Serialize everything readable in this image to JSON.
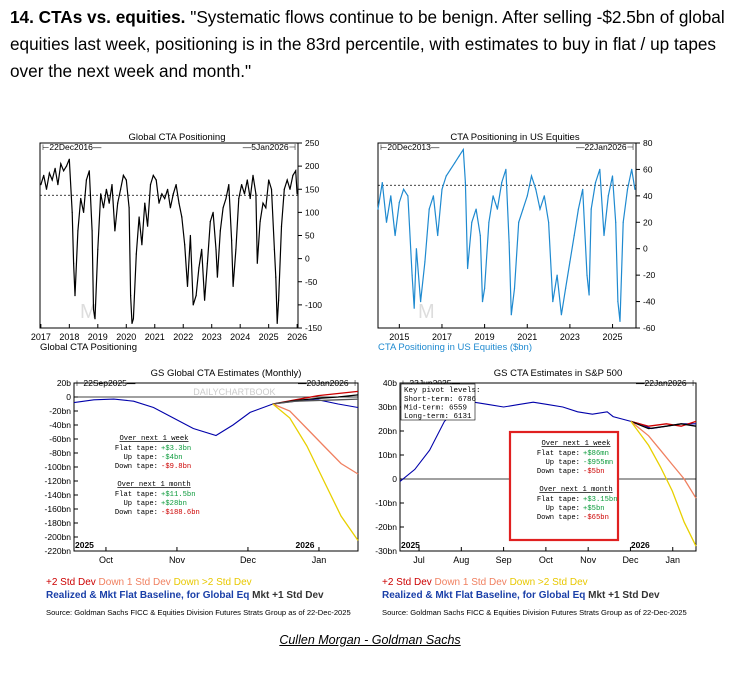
{
  "headline": {
    "prefix": "14. CTAs vs. equities.",
    "quote": " \"Systematic flows continue to be benign. After selling -$2.5bn of global equities last week, positioning is in the 83rd percentile, with estimates to buy in flat / up tapes over the next week and month.\""
  },
  "chart_data": [
    {
      "id": "global-cta-positioning",
      "type": "line",
      "title": "Global CTA Positioning",
      "caption": "Global CTA Positioning",
      "range_start": "22Dec2016",
      "range_end": "5Jan2026",
      "ylim": [
        -150,
        250
      ],
      "yticks": [
        -150,
        -100,
        -50,
        0,
        50,
        100,
        150,
        200,
        250
      ],
      "xlim": [
        2016.97,
        2026.03
      ],
      "xticks": [
        2017,
        2018,
        2019,
        2020,
        2021,
        2022,
        2023,
        2024,
        2025,
        2026
      ],
      "reference_line": 137,
      "color": "#000000",
      "x": [
        2017.0,
        2017.1,
        2017.2,
        2017.3,
        2017.4,
        2017.5,
        2017.6,
        2017.7,
        2017.8,
        2017.9,
        2018.0,
        2018.1,
        2018.15,
        2018.2,
        2018.3,
        2018.4,
        2018.5,
        2018.6,
        2018.7,
        2018.8,
        2018.85,
        2018.9,
        2019.0,
        2019.1,
        2019.2,
        2019.3,
        2019.4,
        2019.5,
        2019.6,
        2019.7,
        2019.8,
        2019.9,
        2020.0,
        2020.1,
        2020.15,
        2020.2,
        2020.25,
        2020.35,
        2020.45,
        2020.55,
        2020.65,
        2020.75,
        2020.85,
        2020.95,
        2021.05,
        2021.15,
        2021.25,
        2021.35,
        2021.45,
        2021.55,
        2021.65,
        2021.75,
        2021.85,
        2021.95,
        2022.05,
        2022.15,
        2022.25,
        2022.35,
        2022.45,
        2022.55,
        2022.65,
        2022.75,
        2022.85,
        2022.95,
        2023.05,
        2023.15,
        2023.2,
        2023.3,
        2023.4,
        2023.5,
        2023.6,
        2023.7,
        2023.75,
        2023.85,
        2023.95,
        2024.05,
        2024.15,
        2024.25,
        2024.35,
        2024.45,
        2024.55,
        2024.6,
        2024.7,
        2024.8,
        2024.9,
        2025.0,
        2025.1,
        2025.2,
        2025.25,
        2025.3,
        2025.35,
        2025.45,
        2025.55,
        2025.65,
        2025.75,
        2025.85,
        2025.95,
        2026.0
      ],
      "values": [
        160,
        180,
        150,
        185,
        170,
        195,
        160,
        205,
        190,
        200,
        215,
        100,
        -10,
        -80,
        60,
        130,
        100,
        170,
        190,
        60,
        -110,
        -130,
        20,
        140,
        110,
        150,
        120,
        160,
        60,
        120,
        150,
        180,
        170,
        110,
        -80,
        -140,
        -130,
        10,
        90,
        30,
        120,
        70,
        160,
        180,
        170,
        120,
        140,
        130,
        150,
        110,
        140,
        160,
        120,
        90,
        30,
        -60,
        50,
        -100,
        -80,
        -20,
        20,
        -90,
        -10,
        80,
        100,
        20,
        -40,
        60,
        110,
        130,
        160,
        40,
        -60,
        20,
        130,
        160,
        140,
        170,
        130,
        180,
        140,
        -10,
        80,
        120,
        110,
        170,
        150,
        20,
        -40,
        -140,
        -90,
        70,
        150,
        170,
        150,
        180,
        190,
        140
      ]
    },
    {
      "id": "cta-positioning-us-equities",
      "type": "line",
      "title": "CTA Positioning in US Equities",
      "caption": "CTA Positioning in US Equities ($bn)",
      "range_start": "20Dec2013",
      "range_end": "22Jan2026",
      "ylim": [
        -60,
        80
      ],
      "yticks": [
        -60,
        -40,
        -20,
        0,
        20,
        40,
        60,
        80
      ],
      "xlim": [
        2014.0,
        2026.1
      ],
      "xticks": [
        2015,
        2017,
        2019,
        2021,
        2023,
        2025
      ],
      "reference_line": 48,
      "color": "#1f8ad0",
      "x": [
        2014.0,
        2014.2,
        2014.4,
        2014.6,
        2014.8,
        2015.0,
        2015.2,
        2015.4,
        2015.6,
        2015.7,
        2015.8,
        2016.0,
        2016.2,
        2016.4,
        2016.6,
        2016.8,
        2017.0,
        2017.2,
        2017.4,
        2017.6,
        2017.8,
        2018.0,
        2018.1,
        2018.2,
        2018.4,
        2018.6,
        2018.8,
        2018.9,
        2019.0,
        2019.2,
        2019.4,
        2019.6,
        2019.8,
        2020.0,
        2020.15,
        2020.25,
        2020.4,
        2020.6,
        2020.8,
        2021.0,
        2021.2,
        2021.4,
        2021.6,
        2021.8,
        2022.0,
        2022.2,
        2022.4,
        2022.6,
        2022.8,
        2023.0,
        2023.2,
        2023.4,
        2023.6,
        2023.8,
        2023.9,
        2024.0,
        2024.2,
        2024.4,
        2024.6,
        2024.8,
        2025.0,
        2025.15,
        2025.25,
        2025.35,
        2025.5,
        2025.7,
        2025.9,
        2026.05
      ],
      "values": [
        30,
        50,
        20,
        40,
        10,
        35,
        45,
        40,
        -20,
        -45,
        0,
        -40,
        -10,
        30,
        40,
        10,
        45,
        55,
        60,
        65,
        70,
        75,
        50,
        -15,
        20,
        30,
        10,
        -40,
        -30,
        20,
        40,
        30,
        50,
        60,
        5,
        -50,
        -30,
        20,
        30,
        40,
        55,
        45,
        30,
        40,
        20,
        -40,
        -20,
        -50,
        -30,
        -10,
        10,
        30,
        45,
        -20,
        -35,
        30,
        50,
        60,
        10,
        40,
        55,
        20,
        -40,
        -55,
        20,
        45,
        60,
        45
      ]
    },
    {
      "id": "gs-global-cta-estimates",
      "type": "line",
      "title": "GS Global CTA Estimates (Monthly)",
      "range_start": "22Sep2025",
      "range_end": "20Jan2026",
      "ylim": [
        -220,
        20
      ],
      "yticks": [
        20,
        0,
        -20,
        -40,
        -60,
        -80,
        -100,
        -120,
        -140,
        -160,
        -180,
        -200,
        -220
      ],
      "ytick_labels": [
        "20b",
        "0",
        "-20bn",
        "-40bn",
        "-60bn",
        "-80bn",
        "-100bn",
        "-120bn",
        "-140bn",
        "-160bn",
        "-180bn",
        "-200bn",
        "-220bn"
      ],
      "x_labels": [
        "Oct",
        "Nov",
        "Dec",
        "Jan"
      ],
      "year_labels": [
        "2025",
        "2026"
      ],
      "zero_line": 0,
      "series": [
        {
          "name": "Realized & Mkt Flat Baseline",
          "color": "#0000aa",
          "x": [
            0,
            0.07,
            0.14,
            0.21,
            0.28,
            0.35,
            0.42,
            0.5,
            0.56,
            0.62,
            0.7,
            0.78,
            0.86,
            0.93,
            1.0
          ],
          "values": [
            -8,
            -4,
            -3,
            -6,
            -15,
            -30,
            -45,
            -55,
            -40,
            -22,
            -10,
            -6,
            -4,
            -10,
            -15
          ]
        },
        {
          "name": "+2 Std Dev",
          "color": "#cc0000",
          "x": [
            0.7,
            0.78,
            0.86,
            0.93,
            1.0
          ],
          "values": [
            -10,
            -4,
            2,
            5,
            8
          ]
        },
        {
          "name": "+1 Std Dev",
          "color": "#000000",
          "x": [
            0.7,
            0.78,
            0.86,
            0.93,
            1.0
          ],
          "values": [
            -10,
            -5,
            -2,
            0,
            3
          ]
        },
        {
          "name": "Mkt +1 Std Dev",
          "color": "#555555",
          "x": [
            0.7,
            0.78,
            0.86,
            0.93,
            1.0
          ],
          "values": [
            -10,
            -6,
            -5,
            -4,
            -3
          ]
        },
        {
          "name": "Down 1 Std Dev",
          "color": "#f08060",
          "x": [
            0.7,
            0.76,
            0.82,
            0.88,
            0.94,
            1.0
          ],
          "values": [
            -10,
            -20,
            -45,
            -70,
            -95,
            -110
          ]
        },
        {
          "name": "Down >2 Std Dev",
          "color": "#e8d000",
          "x": [
            0.7,
            0.76,
            0.82,
            0.88,
            0.94,
            1.0
          ],
          "values": [
            -10,
            -30,
            -70,
            -120,
            -170,
            -205
          ]
        }
      ],
      "annotations": {
        "week_header": "Over next 1 week",
        "week_rows": [
          {
            "label": "Flat tape:",
            "value": "+$3.3bn",
            "color": "#0a9a3a"
          },
          {
            "label": "Up tape:",
            "value": "-$4bn",
            "color": "#0a9a3a"
          },
          {
            "label": "Down tape:",
            "value": "-$9.8bn",
            "color": "#cc0000"
          }
        ],
        "month_header": "Over next 1 month",
        "month_rows": [
          {
            "label": "Flat tape:",
            "value": "+$11.5bn",
            "color": "#0a9a3a"
          },
          {
            "label": "Up tape:",
            "value": "+$28bn",
            "color": "#0a9a3a"
          },
          {
            "label": "Down tape:",
            "value": "-$188.6bn",
            "color": "#cc0000"
          }
        ]
      }
    },
    {
      "id": "gs-cta-estimates-sp500",
      "type": "line",
      "title": "GS CTA Estimates in S&P 500",
      "range_start": "23Jun2025",
      "range_end": "22Jan2026",
      "ylim": [
        -30,
        40
      ],
      "yticks": [
        40,
        30,
        20,
        10,
        0,
        -10,
        -20,
        -30
      ],
      "ytick_labels": [
        "40b",
        "30bn",
        "20bn",
        "10bn",
        "0",
        "-10bn",
        "-20bn",
        "-30bn"
      ],
      "x_labels": [
        "Jul",
        "Aug",
        "Sep",
        "Oct",
        "Nov",
        "Dec",
        "Jan"
      ],
      "year_labels": [
        "2025",
        "2026"
      ],
      "zero_line": 0,
      "pivot_levels": {
        "header": "Key pivot levels:",
        "rows": [
          "Short-term: 6786",
          "Mid-term: 6559",
          "Long-term: 6131"
        ]
      },
      "series": [
        {
          "name": "Realized & Mkt Flat Baseline",
          "color": "#0000aa",
          "x": [
            0,
            0.05,
            0.1,
            0.15,
            0.2,
            0.25,
            0.3,
            0.35,
            0.4,
            0.45,
            0.5,
            0.55,
            0.6,
            0.65,
            0.7,
            0.72,
            0.75,
            0.78,
            0.81,
            0.85,
            0.9,
            0.95,
            1.0
          ],
          "values": [
            -1,
            4,
            12,
            24,
            30,
            32,
            31,
            30,
            31,
            32,
            31,
            30,
            28,
            27,
            28,
            26,
            25,
            24,
            23,
            21,
            22,
            23,
            23
          ]
        },
        {
          "name": "+2 Std Dev",
          "color": "#cc0000",
          "x": [
            0.78,
            0.84,
            0.9,
            0.95,
            1.0
          ],
          "values": [
            24,
            22,
            23,
            22,
            24
          ]
        },
        {
          "name": "+1 Std Dev",
          "color": "#000000",
          "x": [
            0.78,
            0.84,
            0.9,
            0.95,
            1.0
          ],
          "values": [
            24,
            21,
            22,
            23,
            22
          ]
        },
        {
          "name": "Down 1 Std Dev",
          "color": "#f08060",
          "x": [
            0.78,
            0.84,
            0.88,
            0.92,
            0.96,
            1.0
          ],
          "values": [
            24,
            18,
            12,
            6,
            0,
            -8
          ]
        },
        {
          "name": "Down >2 Std Dev",
          "color": "#e8d000",
          "x": [
            0.78,
            0.84,
            0.88,
            0.92,
            0.96,
            1.0
          ],
          "values": [
            24,
            14,
            5,
            -5,
            -18,
            -28
          ]
        }
      ],
      "annotations": {
        "week_header": "Over next 1 week",
        "week_rows": [
          {
            "label": "Flat tape:",
            "value": "+$86mn",
            "color": "#0a9a3a"
          },
          {
            "label": "Up tape:",
            "value": "-$955mn",
            "color": "#0a9a3a"
          },
          {
            "label": "Down tape:",
            "value": "-$5bn",
            "color": "#cc0000"
          }
        ],
        "month_header": "Over next 1 month",
        "month_rows": [
          {
            "label": "Flat tape:",
            "value": "+$3.15bn",
            "color": "#0a9a3a"
          },
          {
            "label": "Up tape:",
            "value": "+$5bn",
            "color": "#0a9a3a"
          },
          {
            "label": "Down tape:",
            "value": "-$65bn",
            "color": "#cc0000"
          }
        ]
      }
    }
  ],
  "legend": {
    "line1": [
      {
        "text": "+2 Std Dev",
        "color": "#cc0000"
      },
      {
        "text": "Down 1 Std Dev",
        "color": "#f08060"
      },
      {
        "text": "Down >2 Std Dev",
        "color": "#e8c800"
      }
    ],
    "line2": [
      {
        "text": "Realized & Mkt Flat Baseline, for Global Eq",
        "color": "#1a3fa8"
      },
      {
        "text": "Mkt +1 Std Dev",
        "color": "#333333"
      }
    ],
    "line1_right": [
      {
        "text": "+2 Std Dev",
        "color": "#cc0000"
      },
      {
        "text": "Down 1 Std Dev",
        "color": "#f08060"
      },
      {
        "text": "Down >2 Std Dev",
        "color": "#e8c800"
      }
    ],
    "line2_right": [
      {
        "text": "Realized & Mkt Flat Baseline, for Global Eq",
        "color": "#1a3fa8"
      },
      {
        "text": "Mkt +1 Std Dev",
        "color": "#333333"
      }
    ]
  },
  "source": "Source: Goldman Sachs FICC & Equities Division Futures Strats Group as of 22-Dec-2025",
  "credit": "Cullen Morgan - Goldman Sachs",
  "watermark": "DAILYCHARTBOOK"
}
